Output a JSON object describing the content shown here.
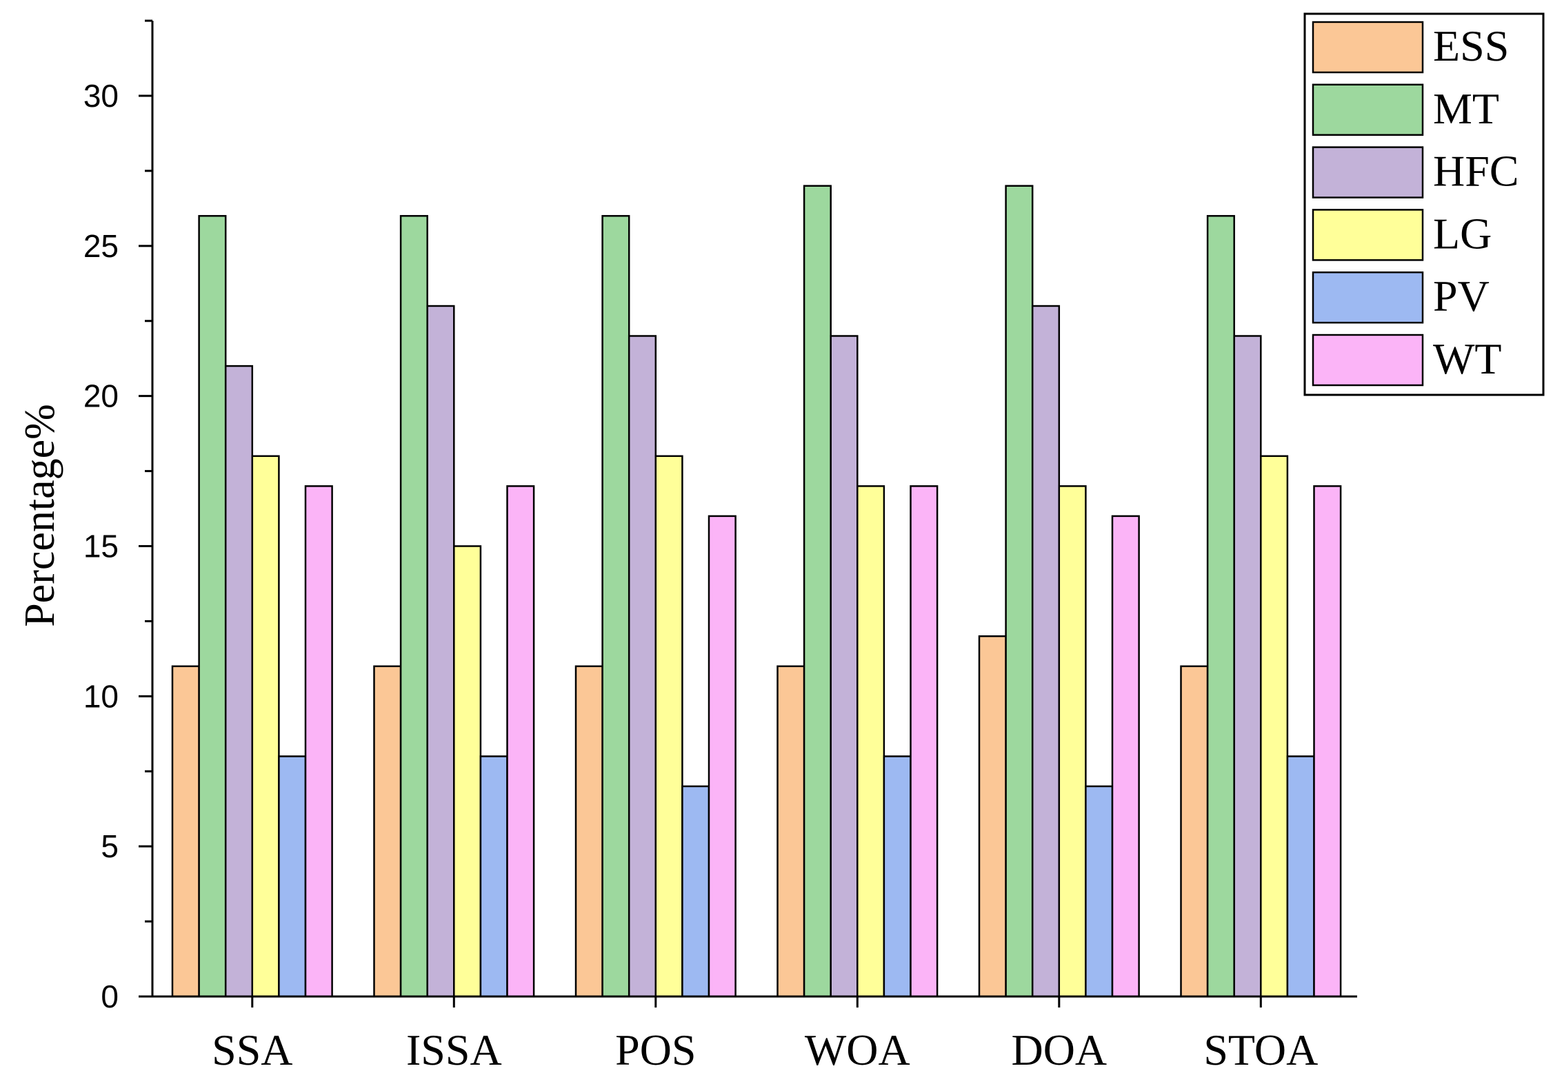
{
  "chart_data": {
    "type": "bar",
    "title": "",
    "xlabel": "",
    "ylabel": "Percentage%",
    "ylim": [
      0,
      32.5
    ],
    "yticks": [
      0,
      5,
      10,
      15,
      20,
      25,
      30
    ],
    "yticks_minor_step": 2.5,
    "grid": false,
    "legend_position": "top-right",
    "categories": [
      "SSA",
      "ISSA",
      "POS",
      "WOA",
      "DOA",
      "STOA"
    ],
    "series": [
      {
        "name": "ESS",
        "color": "#FBC796",
        "values": [
          11,
          11,
          11,
          11,
          12,
          11
        ]
      },
      {
        "name": "MT",
        "color": "#9DD89E",
        "values": [
          26,
          26,
          26,
          27,
          27,
          26
        ]
      },
      {
        "name": "HFC",
        "color": "#C3B2D8",
        "values": [
          21,
          23,
          22,
          22,
          23,
          22
        ]
      },
      {
        "name": "LG",
        "color": "#FFFF99",
        "values": [
          18,
          15,
          18,
          17,
          17,
          18
        ]
      },
      {
        "name": "PV",
        "color": "#9DB9F2",
        "values": [
          8,
          8,
          7,
          8,
          7,
          8
        ]
      },
      {
        "name": "WT",
        "color": "#FBB4F7",
        "values": [
          17,
          17,
          16,
          17,
          16,
          17
        ]
      }
    ]
  }
}
